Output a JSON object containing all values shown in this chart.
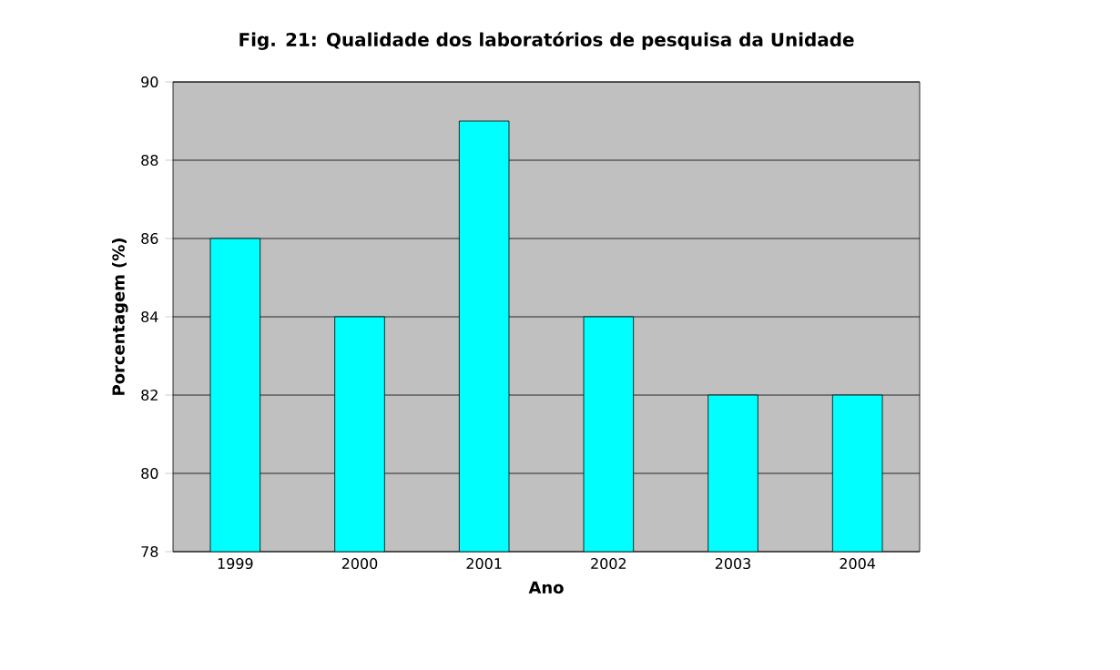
{
  "chart_data": {
    "type": "bar",
    "title": "Fig. 21: Qualidade dos laboratórios de pesquisa da Unidade",
    "xlabel": "Ano",
    "ylabel": "Porcentagem (%)",
    "categories": [
      "1999",
      "2000",
      "2001",
      "2002",
      "2003",
      "2004"
    ],
    "values": [
      86,
      84,
      89,
      84,
      82,
      82
    ],
    "color": "#00ffff",
    "ylim": [
      78,
      90
    ],
    "yticks": [
      78,
      80,
      82,
      84,
      86,
      88,
      90
    ],
    "grid": "y"
  }
}
